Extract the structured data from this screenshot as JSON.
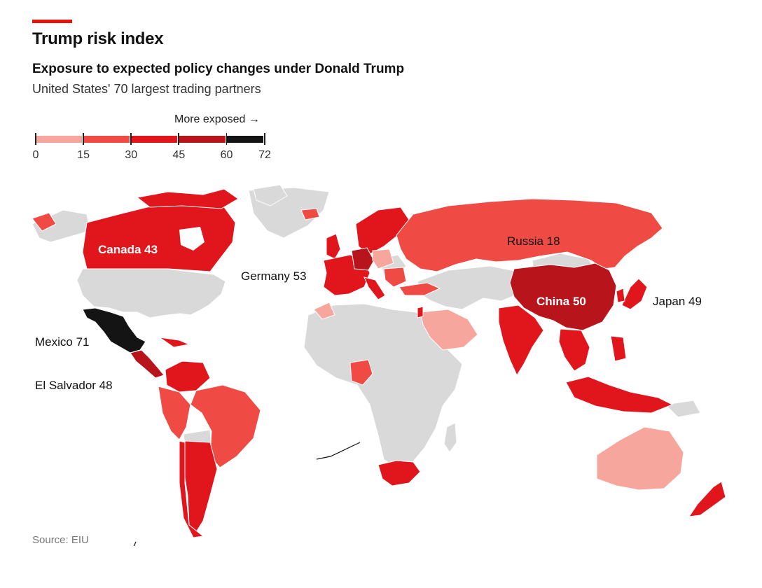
{
  "header": {
    "title": "Trump risk index",
    "subtitle": "Exposure to expected policy changes under Donald Trump",
    "description": "United States' 70 largest trading partners"
  },
  "legend": {
    "caption": "More exposed →",
    "ticks": [
      "0",
      "15",
      "30",
      "45",
      "60",
      "72"
    ],
    "bins": [
      {
        "from": 0,
        "to": 15,
        "color": "#f6a69c"
      },
      {
        "from": 15,
        "to": 30,
        "color": "#ef4a44"
      },
      {
        "from": 30,
        "to": 45,
        "color": "#e1151c"
      },
      {
        "from": 45,
        "to": 60,
        "color": "#b8141c"
      },
      {
        "from": 60,
        "to": 72,
        "color": "#141414"
      }
    ]
  },
  "colors": {
    "accent": "#e3120b",
    "no_data": "#d9d9d9",
    "background": "#ffffff"
  },
  "map_labels": {
    "canada": "Canada 43",
    "russia": "Russia 18",
    "germany": "Germany 53",
    "china": "China 50",
    "japan": "Japan 49",
    "mexico": "Mexico 71",
    "el_salvador": "El Salvador 48"
  },
  "chart_data": {
    "type": "choropleth",
    "countries": [
      {
        "name": "Mexico",
        "score": 71
      },
      {
        "name": "Germany",
        "score": 53
      },
      {
        "name": "China",
        "score": 50
      },
      {
        "name": "Japan",
        "score": 49
      },
      {
        "name": "El Salvador",
        "score": 48
      },
      {
        "name": "Canada",
        "score": 43
      },
      {
        "name": "Russia",
        "score": 18
      }
    ],
    "scale": [
      0,
      15,
      30,
      45,
      60,
      72
    ]
  },
  "footer": {
    "source": "Source: EIU"
  }
}
